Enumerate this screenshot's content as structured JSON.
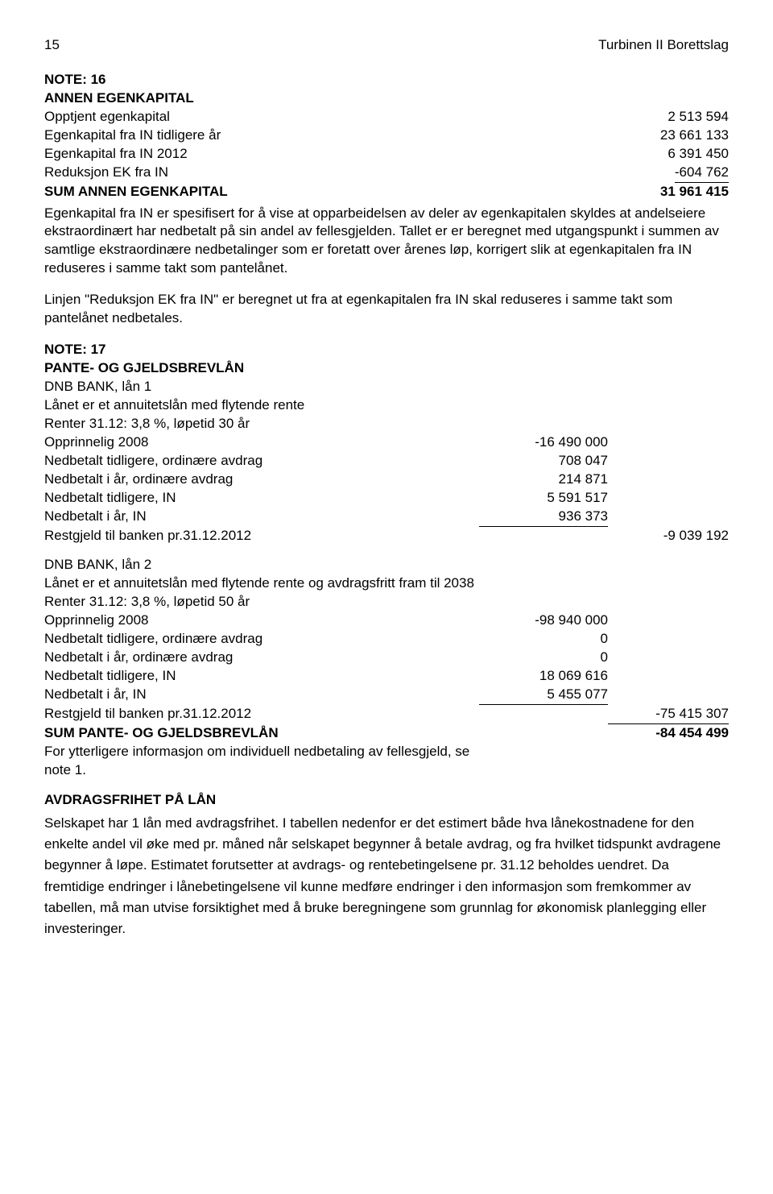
{
  "header": {
    "page": "15",
    "title": "Turbinen II Borettslag"
  },
  "note16": {
    "heading1": "NOTE: 16",
    "heading2": "ANNEN EGENKAPITAL",
    "rows": [
      {
        "label": "Opptjent egenkapital",
        "val": "2 513 594"
      },
      {
        "label": "Egenkapital fra IN tidligere år",
        "val": "23 661 133"
      },
      {
        "label": "Egenkapital fra IN 2012",
        "val": "6 391 450"
      },
      {
        "label": "Reduksjon EK fra IN",
        "val": "-604 762"
      }
    ],
    "sum": {
      "label": "SUM ANNEN EGENKAPITAL",
      "val": "31 961 415"
    },
    "para1": "Egenkapital fra IN er spesifisert for å vise at opparbeidelsen av deler av egenkapitalen skyldes at andelseiere ekstraordinært har nedbetalt på sin andel av fellesgjelden. Tallet er er beregnet med utgangspunkt i summen av samtlige ekstraordinære nedbetalinger som er foretatt over årenes løp, korrigert slik at egenkapitalen fra IN reduseres i samme takt som pantelånet.",
    "para2": "Linjen \"Reduksjon EK fra IN\" er beregnet ut fra at egenkapitalen fra IN skal reduseres i samme takt som pantelånet nedbetales."
  },
  "note17": {
    "heading1": "NOTE: 17",
    "heading2": "PANTE- OG GJELDSBREVLÅN",
    "loan1": {
      "name": "DNB BANK, lån 1",
      "desc": "Lånet er et annuitetslån med flytende rente",
      "terms": "Renter 31.12: 3,8 %, løpetid 30 år",
      "rows": [
        {
          "label": "Opprinnelig 2008",
          "mid": "-16 490 000"
        },
        {
          "label": "Nedbetalt tidligere, ordinære avdrag",
          "mid": "708 047"
        },
        {
          "label": "Nedbetalt i år, ordinære avdrag",
          "mid": "214 871"
        },
        {
          "label": "Nedbetalt tidligere, IN",
          "mid": "5 591 517"
        },
        {
          "label": "Nedbetalt i år, IN",
          "mid": "936 373",
          "ul": true
        }
      ],
      "rest": {
        "label": "Restgjeld til banken pr.31.12.2012",
        "right": "-9 039 192"
      }
    },
    "loan2": {
      "name": "DNB BANK, lån 2",
      "desc": "Lånet er et annuitetslån med flytende rente og avdragsfritt fram til 2038",
      "terms": "Renter 31.12: 3,8 %, løpetid 50 år",
      "rows": [
        {
          "label": "Opprinnelig 2008",
          "mid": "-98 940 000"
        },
        {
          "label": "Nedbetalt tidligere, ordinære avdrag",
          "mid": "0"
        },
        {
          "label": "Nedbetalt i år, ordinære avdrag",
          "mid": "0"
        },
        {
          "label": "Nedbetalt tidligere, IN",
          "mid": "18 069 616"
        },
        {
          "label": "Nedbetalt i år, IN",
          "mid": "5 455 077",
          "ul": true
        }
      ],
      "rest": {
        "label": "Restgjeld til banken pr.31.12.2012",
        "right": "-75 415 307",
        "ul": true
      }
    },
    "sum": {
      "label": "SUM PANTE- OG GJELDSBREVLÅN",
      "right": "-84 454 499"
    },
    "footer": "For ytterligere informasjon om individuell nedbetaling av fellesgjeld, se note 1."
  },
  "avdrag": {
    "heading": "AVDRAGSFRIHET PÅ LÅN",
    "para": "Selskapet har 1 lån med avdragsfrihet. I tabellen nedenfor er det estimert både hva lånekostnadene for den enkelte andel vil øke med pr. måned når selskapet begynner å betale avdrag, og fra hvilket tidspunkt avdragene begynner å løpe. Estimatet forutsetter at avdrags- og rentebetingelsene pr. 31.12 beholdes uendret. Da fremtidige endringer i lånebetingelsene vil kunne medføre endringer i den informasjon som fremkommer av tabellen, må man utvise forsiktighet med å bruke beregningene som grunnlag for økonomisk planlegging eller investeringer."
  }
}
